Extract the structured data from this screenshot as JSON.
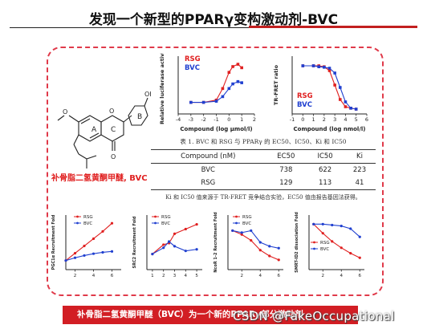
{
  "slide": {
    "title": "发现一个新型的PPARγ变构激动剂-BVC",
    "compound_name": "补骨脂二氢黄酮甲醚, BVC",
    "bottom_text": "补骨脂二氢黄酮甲醚（BVC）为一个新的PPARγ部分激动剂",
    "watermark": "CSDN @FakeOccupational"
  },
  "structure": {
    "ring_labels": [
      "A",
      "C",
      "B"
    ],
    "atom_labels": [
      "O",
      "O",
      "O",
      "OH"
    ]
  },
  "table": {
    "caption": "表 1. BVC 和 RSG 与 PPARγ 的 EC50、IC50、Ki 和 IC50",
    "columns": [
      "Compound (nM)",
      "EC50",
      "IC50",
      "Ki"
    ],
    "rows": [
      [
        "BVC",
        "738",
        "622",
        "223"
      ],
      [
        "RSG",
        "129",
        "113",
        "41"
      ]
    ],
    "note": "Ki 和 IC50 值来源于 TR-FRET 竞争结合实验，EC50 值由报告基因法获得。"
  },
  "colors": {
    "rsg": "#e02020",
    "bvc": "#2040d0",
    "accent": "#d21e24"
  },
  "chart_data": [
    {
      "type": "line",
      "ylabel": "Relative luciferase activity",
      "xlabel": "Compound (log μmol/l)",
      "xlim": [
        -4,
        2
      ],
      "xticks": [
        "-4",
        "-3",
        "-2",
        "-1",
        "0",
        "1",
        "2"
      ],
      "series": [
        {
          "name": "RSG",
          "x": [
            -3,
            -2,
            -1,
            -0.5,
            0,
            0.3,
            0.7,
            1
          ],
          "y": [
            1.0,
            1.0,
            1.2,
            2.2,
            3.6,
            4.1,
            4.3,
            4.0
          ]
        },
        {
          "name": "BVC",
          "x": [
            -3,
            -2,
            -1,
            -0.5,
            0,
            0.3,
            0.7,
            1
          ],
          "y": [
            1.0,
            1.0,
            1.1,
            1.5,
            2.2,
            2.6,
            2.8,
            2.7
          ]
        }
      ]
    },
    {
      "type": "line",
      "ylabel": "TR-FRET ratio",
      "xlabel": "Compound (log nmol/l)",
      "xlim": [
        -1,
        6
      ],
      "xticks": [
        "-1",
        "0",
        "1",
        "2",
        "3",
        "4",
        "5",
        "6"
      ],
      "series": [
        {
          "name": "RSG",
          "x": [
            0,
            1,
            1.5,
            2,
            2.5,
            3,
            3.5,
            4,
            4.5,
            5
          ],
          "y": [
            1.0,
            1.0,
            1.0,
            0.98,
            0.9,
            0.6,
            0.3,
            0.15,
            0.12,
            0.1
          ]
        },
        {
          "name": "BVC",
          "x": [
            0,
            1,
            1.5,
            2,
            2.5,
            3,
            3.5,
            4,
            4.5,
            5
          ],
          "y": [
            1.0,
            1.0,
            0.98,
            0.97,
            0.95,
            0.85,
            0.55,
            0.25,
            0.12,
            0.1
          ]
        }
      ]
    },
    {
      "type": "line",
      "ylabel": "PGC1α Recruitment Fold",
      "xticks": [
        "2",
        "4",
        "6"
      ],
      "series": [
        {
          "name": "RSG",
          "x": [
            1,
            2,
            3,
            4,
            5,
            6
          ],
          "y": [
            1.0,
            1.8,
            2.6,
            3.4,
            4.2,
            5.1
          ]
        },
        {
          "name": "BVC",
          "x": [
            1,
            2,
            3,
            4,
            5,
            6
          ],
          "y": [
            1.0,
            1.3,
            1.55,
            1.75,
            1.9,
            2.0
          ]
        }
      ]
    },
    {
      "type": "line",
      "ylabel": "SRC2 Recruitment Fold",
      "xticks": [
        "1",
        "2",
        "3",
        "4",
        "5"
      ],
      "series": [
        {
          "name": "RSG",
          "x": [
            1,
            2,
            2.5,
            3,
            4,
            5
          ],
          "y": [
            1.0,
            1.6,
            1.7,
            2.3,
            2.6,
            2.9
          ]
        },
        {
          "name": "BVC",
          "x": [
            1,
            2,
            2.5,
            3,
            4,
            5
          ],
          "y": [
            1.0,
            1.4,
            1.8,
            1.5,
            1.2,
            1.3
          ]
        }
      ]
    },
    {
      "type": "line",
      "ylabel": "NcoR 1-2 Recruitment Fold",
      "xticks": [
        "2",
        "4",
        "6"
      ],
      "series": [
        {
          "name": "RSG",
          "x": [
            1,
            2,
            3,
            4,
            5,
            6
          ],
          "y": [
            1.0,
            0.9,
            0.75,
            0.5,
            0.35,
            0.25
          ]
        },
        {
          "name": "BVC",
          "x": [
            1,
            2,
            3,
            4,
            5,
            6
          ],
          "y": [
            1.0,
            0.95,
            1.0,
            0.7,
            0.6,
            0.55
          ]
        }
      ]
    },
    {
      "type": "line",
      "ylabel": "SMRT-ID2 dissociation Fold",
      "xticks": [
        "2",
        "4",
        "6"
      ],
      "series": [
        {
          "name": "RSG",
          "x": [
            1,
            2,
            3,
            4,
            5,
            6
          ],
          "y": [
            1.0,
            0.8,
            0.62,
            0.48,
            0.36,
            0.26
          ]
        },
        {
          "name": "BVC",
          "x": [
            1,
            2,
            3,
            4,
            5,
            6
          ],
          "y": [
            1.0,
            1.0,
            0.98,
            0.96,
            0.9,
            0.72
          ]
        }
      ]
    }
  ]
}
